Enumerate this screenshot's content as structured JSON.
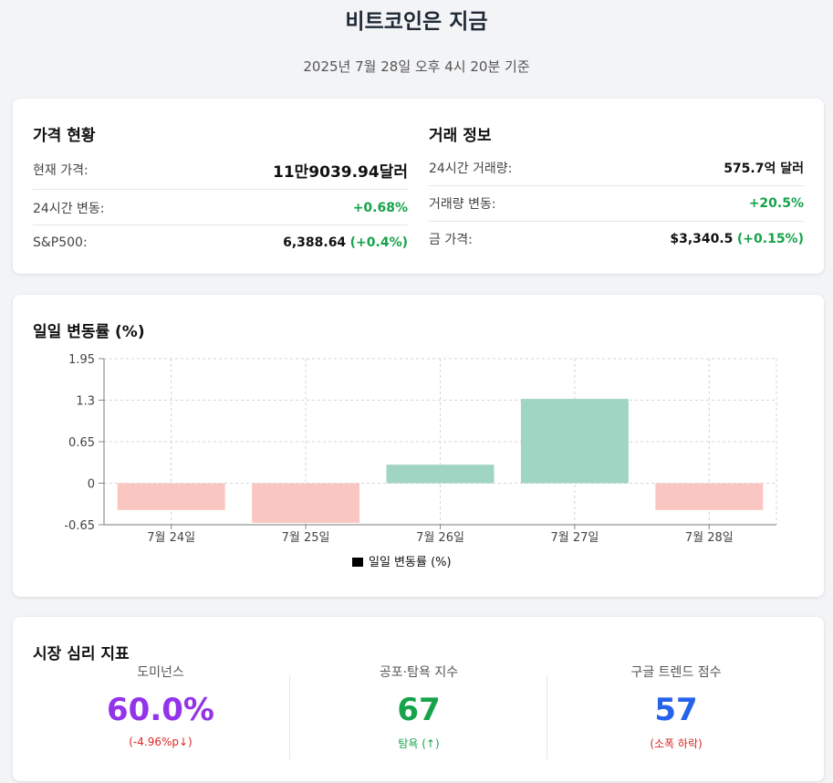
{
  "header": {
    "title": "비트코인은 지금",
    "subtitle": "2025년 7월 28일 오후 4시 20분 기준"
  },
  "price_status": {
    "title": "가격 현황",
    "rows": [
      {
        "label": "현재 가격:",
        "value": "11만9039.94달러",
        "change": ""
      },
      {
        "label": "24시간 변동:",
        "value": "",
        "change": "+0.68%"
      },
      {
        "label": "S&P500:",
        "value": "6,388.64",
        "change": "(+0.4%)"
      }
    ]
  },
  "trade_info": {
    "title": "거래 정보",
    "rows": [
      {
        "label": "24시간 거래량:",
        "value": "575.7억 달러",
        "change": ""
      },
      {
        "label": "거래량 변동:",
        "value": "",
        "change": "+20.5%"
      },
      {
        "label": "금 가격:",
        "value": "$3,340.5",
        "change": "(+0.15%)"
      }
    ]
  },
  "daily_change": {
    "title": "일일 변동률 (%)"
  },
  "chart_data": {
    "type": "bar",
    "categories": [
      "7월 24일",
      "7월 25일",
      "7월 26일",
      "7월 27일",
      "7월 28일"
    ],
    "series": [
      {
        "name": "일일 변동률 (%)",
        "values": [
          -0.42,
          -0.62,
          0.29,
          1.32,
          -0.42
        ]
      }
    ],
    "ylim": [
      -0.65,
      1.95
    ],
    "yticks": [
      "1.95",
      "1.3",
      "0.65",
      "0",
      "-0.65"
    ],
    "positive_color": "#a0d4c3",
    "negative_color": "#f9c6c2",
    "legend": "일일 변동률 (%)",
    "legend_position": "bottom",
    "grid": true
  },
  "sentiment": {
    "title": "시장 심리 지표",
    "metrics": [
      {
        "label": "도미넌스",
        "value": "60.0%",
        "sub": "(-4.96%p↓)",
        "color": "#9333ea",
        "sub_color": "#dc2626"
      },
      {
        "label": "공포·탐욕 지수",
        "value": "67",
        "sub": "탐욕 (↑)",
        "color": "#16a34a",
        "sub_color": "#16a34a"
      },
      {
        "label": "구글 트렌드 점수",
        "value": "57",
        "sub": "(소폭 하락)",
        "color": "#2563eb",
        "sub_color": "#dc2626"
      }
    ]
  }
}
